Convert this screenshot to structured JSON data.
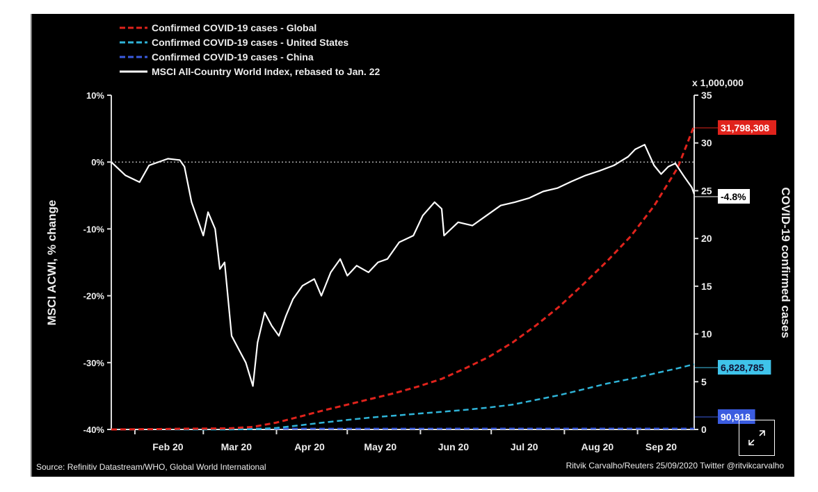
{
  "chart_data": {
    "type": "line",
    "legend": [
      {
        "label": "Confirmed COVID-19 cases - Global",
        "color": "#e0231c",
        "style": "dashed"
      },
      {
        "label": "Confirmed COVID-19 cases - United States",
        "color": "#2fb4d8",
        "style": "dashed"
      },
      {
        "label": "Confirmed COVID-19 cases - China",
        "color": "#3b5ce0",
        "style": "dashed"
      },
      {
        "label": "MSCI All-Country World Index, rebased to Jan. 22",
        "color": "#ffffff",
        "style": "solid"
      }
    ],
    "legend_position": "top-left",
    "x_unit": "days since Jan 22, 2020",
    "x_range": [
      0,
      247
    ],
    "x_ticks": [
      {
        "label": "Feb 20",
        "day": 24
      },
      {
        "label": "Mar 20",
        "day": 53
      },
      {
        "label": "Apr 20",
        "day": 84
      },
      {
        "label": "May 20",
        "day": 114
      },
      {
        "label": "Jun 20",
        "day": 145
      },
      {
        "label": "Jul 20",
        "day": 175
      },
      {
        "label": "Aug 20",
        "day": 206
      },
      {
        "label": "Sep 20",
        "day": 233
      }
    ],
    "y_left": {
      "label": "MSCI ACWI, % change",
      "range": [
        -40,
        10
      ],
      "ticks": [
        "10%",
        "0%",
        "-10%",
        "-20%",
        "-30%",
        "-40%"
      ],
      "tick_values": [
        10,
        0,
        -10,
        -20,
        -30,
        -40
      ]
    },
    "y_right": {
      "label": "COVID-19 confirmed cases",
      "unit_label": "x 1,000,000",
      "range": [
        0,
        35
      ],
      "ticks": [
        "35",
        "30",
        "25",
        "20",
        "15",
        "10",
        "5",
        "0"
      ],
      "tick_values": [
        35,
        30,
        25,
        20,
        15,
        10,
        5,
        0
      ]
    },
    "series": [
      {
        "name": "MSCI ACWI",
        "axis": "left",
        "x": [
          0,
          6,
          12,
          16,
          24,
          29,
          31,
          34,
          39,
          41,
          44,
          46,
          48,
          51,
          54,
          57,
          60,
          62,
          65,
          68,
          71,
          74,
          77,
          81,
          86,
          89,
          93,
          97,
          100,
          104,
          109,
          113,
          117,
          122,
          128,
          132,
          137,
          140,
          141,
          147,
          153,
          159,
          165,
          171,
          177,
          183,
          189,
          195,
          201,
          207,
          213,
          219,
          222,
          226,
          230,
          233,
          236,
          239,
          243,
          246,
          247
        ],
        "y": [
          0,
          -2,
          -3,
          -0.5,
          0.5,
          0.3,
          -0.7,
          -6,
          -11,
          -7.5,
          -10,
          -16,
          -15,
          -26,
          -28,
          -30,
          -33.5,
          -27,
          -22.5,
          -24.5,
          -26,
          -23,
          -20.5,
          -18.5,
          -17.5,
          -20,
          -16.5,
          -14.5,
          -17,
          -15.5,
          -16.5,
          -15,
          -14.5,
          -12,
          -11,
          -8,
          -6,
          -7,
          -11,
          -9,
          -9.5,
          -8,
          -6.5,
          -6,
          -5.4,
          -4.4,
          -3.9,
          -2.9,
          -2,
          -1.3,
          -0.5,
          0.8,
          1.9,
          2.6,
          -0.5,
          -1.8,
          -0.7,
          -0.2,
          -2.3,
          -3.8,
          -4.8
        ]
      },
      {
        "name": "Global cases (millions)",
        "axis": "right",
        "x": [
          0,
          10,
          20,
          30,
          39,
          50,
          60,
          70,
          80,
          90,
          100,
          110,
          120,
          130,
          140,
          150,
          160,
          170,
          180,
          190,
          200,
          210,
          220,
          230,
          240,
          247
        ],
        "y": [
          0.0006,
          0.012,
          0.04,
          0.075,
          0.087,
          0.12,
          0.27,
          0.72,
          1.35,
          2.0,
          2.6,
          3.2,
          3.8,
          4.5,
          5.3,
          6.4,
          7.6,
          9.1,
          10.9,
          12.9,
          15.2,
          17.6,
          20.2,
          23.4,
          27.4,
          31.8
        ]
      },
      {
        "name": "US cases (millions)",
        "axis": "right",
        "x": [
          0,
          40,
          50,
          60,
          70,
          80,
          90,
          100,
          110,
          120,
          130,
          140,
          150,
          160,
          170,
          180,
          190,
          200,
          210,
          220,
          230,
          240,
          247
        ],
        "y": [
          0,
          0.0001,
          0.001,
          0.03,
          0.16,
          0.44,
          0.73,
          1.0,
          1.25,
          1.45,
          1.65,
          1.85,
          2.05,
          2.3,
          2.6,
          3.1,
          3.6,
          4.2,
          4.8,
          5.3,
          5.85,
          6.4,
          6.83
        ]
      },
      {
        "name": "China cases (millions)",
        "axis": "right",
        "x": [
          0,
          10,
          20,
          30,
          40,
          60,
          247
        ],
        "y": [
          0.0006,
          0.012,
          0.044,
          0.072,
          0.08,
          0.081,
          0.091
        ]
      }
    ],
    "end_labels": {
      "global": "31,798,308",
      "us": "6,828,785",
      "china": "90,918",
      "msci": "-4.8%"
    },
    "source": "Source: Refinitiv Datastream/WHO, Global World International",
    "credit": "Ritvik Carvalho/Reuters 25/09/2020 Twitter @ritvikcarvalho"
  },
  "ui": {
    "expand_button": "expand-icon"
  }
}
